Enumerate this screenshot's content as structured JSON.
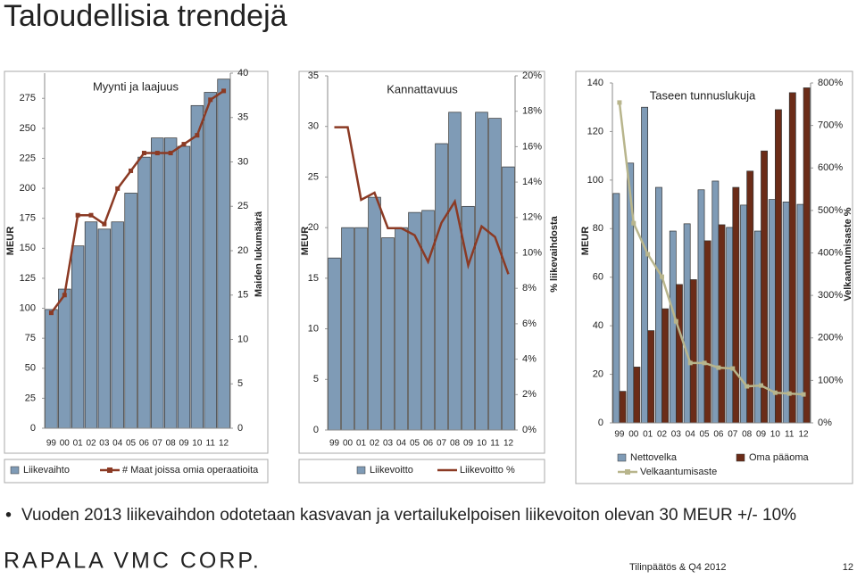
{
  "title": "Taloudellisia trendejä",
  "bullet": "Vuoden 2013 liikevaihdon odotetaan kasvavan ja vertailukelpoisen liikevoiton olevan 30 MEUR +/- 10%",
  "footer": {
    "logo": "RAPALA VMC CORP.",
    "report": "Tilinpäätös & Q4 2012",
    "page": "12"
  },
  "chart_data": [
    {
      "type": "bar",
      "title": "Myynti ja laajuus",
      "y_label": "MEUR",
      "y2_label": "Maiden lukumäärä",
      "categories": [
        "99",
        "00",
        "01",
        "02",
        "03",
        "04",
        "05",
        "06",
        "07",
        "08",
        "09",
        "10",
        "11",
        "12"
      ],
      "series": [
        {
          "name": "Liikevaihto",
          "color": "#7f9bb6",
          "values": [
            99,
            116,
            152,
            172,
            166,
            172,
            196,
            226,
            242,
            242,
            235,
            269,
            280,
            291
          ]
        },
        {
          "name": "# Maat joissa omia operaatioita",
          "color": "#8b3a24",
          "type": "line",
          "axis": "y2",
          "marker": "square",
          "values": [
            13,
            15,
            24,
            24,
            23,
            27,
            29,
            31,
            31,
            31,
            32,
            33,
            37,
            38
          ]
        }
      ],
      "ylim": [
        0,
        296
      ],
      "yticks": [
        0,
        25,
        50,
        75,
        100,
        125,
        150,
        175,
        200,
        225,
        250,
        275
      ],
      "y2lim": [
        0,
        40
      ],
      "y2ticks": [
        0,
        5,
        10,
        15,
        20,
        25,
        30,
        35,
        40
      ]
    },
    {
      "type": "bar",
      "title": "Kannattavuus",
      "y_label": "MEUR",
      "y2_label": "% liikevaihdosta",
      "categories": [
        "99",
        "00",
        "01",
        "02",
        "03",
        "04",
        "05",
        "06",
        "07",
        "08",
        "09",
        "10",
        "11",
        "12"
      ],
      "series": [
        {
          "name": "Liikevoitto",
          "color": "#7f9bb6",
          "values": [
            17,
            20,
            20,
            23,
            19,
            20,
            21.5,
            21.7,
            28.3,
            31.4,
            22.1,
            31.4,
            30.8,
            26
          ]
        },
        {
          "name": "Liikevoitto %",
          "color": "#8b3a24",
          "type": "line",
          "axis": "y2",
          "marker": "none",
          "values": [
            17.1,
            17.1,
            13.0,
            13.4,
            11.4,
            11.4,
            11.0,
            9.5,
            11.7,
            12.9,
            9.3,
            11.5,
            10.9,
            8.8
          ]
        }
      ],
      "ylim": [
        0,
        35
      ],
      "yticks": [
        0,
        5,
        10,
        15,
        20,
        25,
        30,
        35
      ],
      "y2lim": [
        0,
        20
      ],
      "y2ticks": [
        {
          "value": 0,
          "label": "0%"
        },
        {
          "value": 2,
          "label": "2%"
        },
        {
          "value": 4,
          "label": "4%"
        },
        {
          "value": 6,
          "label": "6%"
        },
        {
          "value": 8,
          "label": "8%"
        },
        {
          "value": 10,
          "label": "10%"
        },
        {
          "value": 12,
          "label": "12%"
        },
        {
          "value": 14,
          "label": "14%"
        },
        {
          "value": 16,
          "label": "16%"
        },
        {
          "value": 18,
          "label": "18%"
        },
        {
          "value": 20,
          "label": "20%"
        }
      ]
    },
    {
      "type": "bar",
      "title": "Taseen tunnuslukuja",
      "y_label": "MEUR",
      "y2_label": "Velkaantumisaste %",
      "categories": [
        "99",
        "00",
        "01",
        "02",
        "03",
        "04",
        "05",
        "06",
        "07",
        "08",
        "09",
        "10",
        "11",
        "12"
      ],
      "series": [
        {
          "name": "Nettovelka",
          "color": "#7f9bb6",
          "values": [
            94.5,
            107,
            130,
            97,
            79,
            82,
            96,
            99.6,
            80.5,
            89.7,
            79,
            92,
            91,
            90
          ]
        },
        {
          "name": "Oma pääoma",
          "color": "#6b2c18",
          "values": [
            13,
            23,
            38,
            47,
            57,
            59,
            75,
            81.6,
            97,
            103.7,
            112,
            129,
            136,
            138
          ]
        },
        {
          "name": "Velkaantumisaste",
          "color": "#b8b58c",
          "type": "line",
          "axis": "y2",
          "marker": "square",
          "values": [
            754,
            470,
            397,
            344,
            239,
            141,
            141,
            130,
            128,
            86,
            88,
            71,
            69,
            67
          ]
        }
      ],
      "ylim": [
        0,
        140
      ],
      "yticks": [
        0,
        20,
        40,
        60,
        80,
        100,
        120,
        140
      ],
      "y2lim": [
        0,
        800
      ],
      "y2ticks": [
        {
          "value": 0,
          "label": "0%"
        },
        {
          "value": 100,
          "label": "100%"
        },
        {
          "value": 200,
          "label": "200%"
        },
        {
          "value": 300,
          "label": "300%"
        },
        {
          "value": 400,
          "label": "400%"
        },
        {
          "value": 500,
          "label": "500%"
        },
        {
          "value": 600,
          "label": "600%"
        },
        {
          "value": 700,
          "label": "700%"
        },
        {
          "value": 800,
          "label": "800%"
        }
      ]
    }
  ]
}
